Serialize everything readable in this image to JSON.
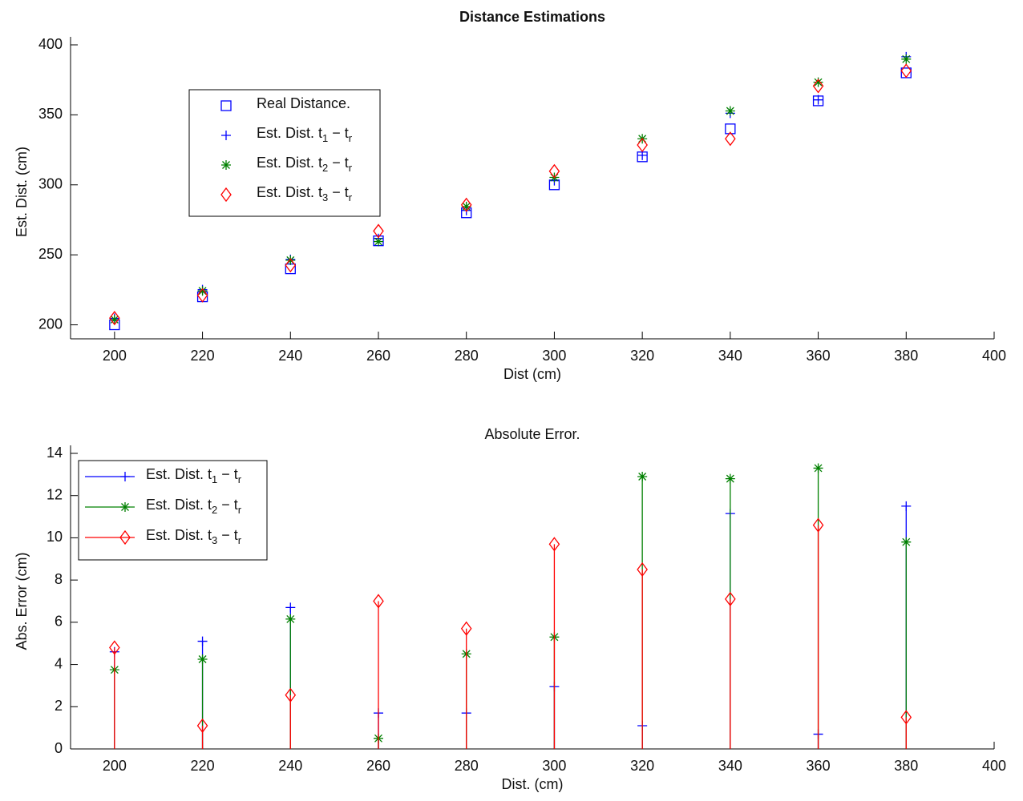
{
  "chart_data": [
    {
      "type": "scatter",
      "title": "Distance Estimations",
      "xlabel": "Dist (cm)",
      "ylabel": "Est. Dist. (cm)",
      "x": [
        200,
        220,
        240,
        260,
        280,
        300,
        320,
        340,
        360,
        380
      ],
      "xlim": [
        190,
        400
      ],
      "xticks": [
        200,
        220,
        240,
        260,
        280,
        300,
        320,
        340,
        360,
        380,
        400
      ],
      "ylim": [
        190,
        400
      ],
      "yticks": [
        200,
        250,
        300,
        350,
        400
      ],
      "legend": "upper left",
      "series": [
        {
          "name": "Real Distance.",
          "color": "#0000ff",
          "marker": "square",
          "values": [
            200,
            220,
            240,
            260,
            280,
            300,
            320,
            340,
            360,
            380
          ]
        },
        {
          "name": "Est. Dist. t1 − tr",
          "color": "#0000ff",
          "marker": "plus",
          "values": [
            204.6,
            225.1,
            246.7,
            261.7,
            281.7,
            302.95,
            321.1,
            351.15,
            360.7,
            391.5
          ]
        },
        {
          "name": "Est. Dist. t2 − tr",
          "color": "#008000",
          "marker": "star",
          "values": [
            203.75,
            224.25,
            246.15,
            259.5,
            284.5,
            305.3,
            332.9,
            352.8,
            373.3,
            389.8
          ]
        },
        {
          "name": "Est. Dist. t3 − tr",
          "color": "#ff0000",
          "marker": "diamond",
          "values": [
            204.8,
            221.1,
            242.55,
            267,
            285.7,
            309.7,
            328.5,
            332.9,
            370.6,
            381.5
          ]
        }
      ]
    },
    {
      "type": "stem",
      "title": "Absolute Error.",
      "xlabel": "Dist. (cm)",
      "ylabel": "Abs. Error (cm)",
      "x": [
        200,
        220,
        240,
        260,
        280,
        300,
        320,
        340,
        360,
        380
      ],
      "xlim": [
        190,
        400
      ],
      "xticks": [
        200,
        220,
        240,
        260,
        280,
        300,
        320,
        340,
        360,
        380,
        400
      ],
      "ylim": [
        0,
        14
      ],
      "yticks": [
        0,
        2,
        4,
        6,
        8,
        10,
        12,
        14
      ],
      "legend": "upper left",
      "series": [
        {
          "name": "Est. Dist. t1 − tr",
          "color": "#0000ff",
          "marker": "plus",
          "values": [
            4.6,
            5.1,
            6.7,
            1.7,
            1.7,
            2.95,
            1.1,
            11.15,
            0.7,
            11.5
          ]
        },
        {
          "name": "Est. Dist. t2 − tr",
          "color": "#008000",
          "marker": "star",
          "values": [
            3.75,
            4.25,
            6.15,
            0.5,
            4.5,
            5.3,
            12.9,
            12.8,
            13.3,
            9.8
          ]
        },
        {
          "name": "Est. Dist. t3 − tr",
          "color": "#ff0000",
          "marker": "diamond",
          "values": [
            4.8,
            1.1,
            2.55,
            7,
            5.7,
            9.7,
            8.5,
            7.1,
            10.6,
            1.5
          ]
        }
      ]
    }
  ]
}
